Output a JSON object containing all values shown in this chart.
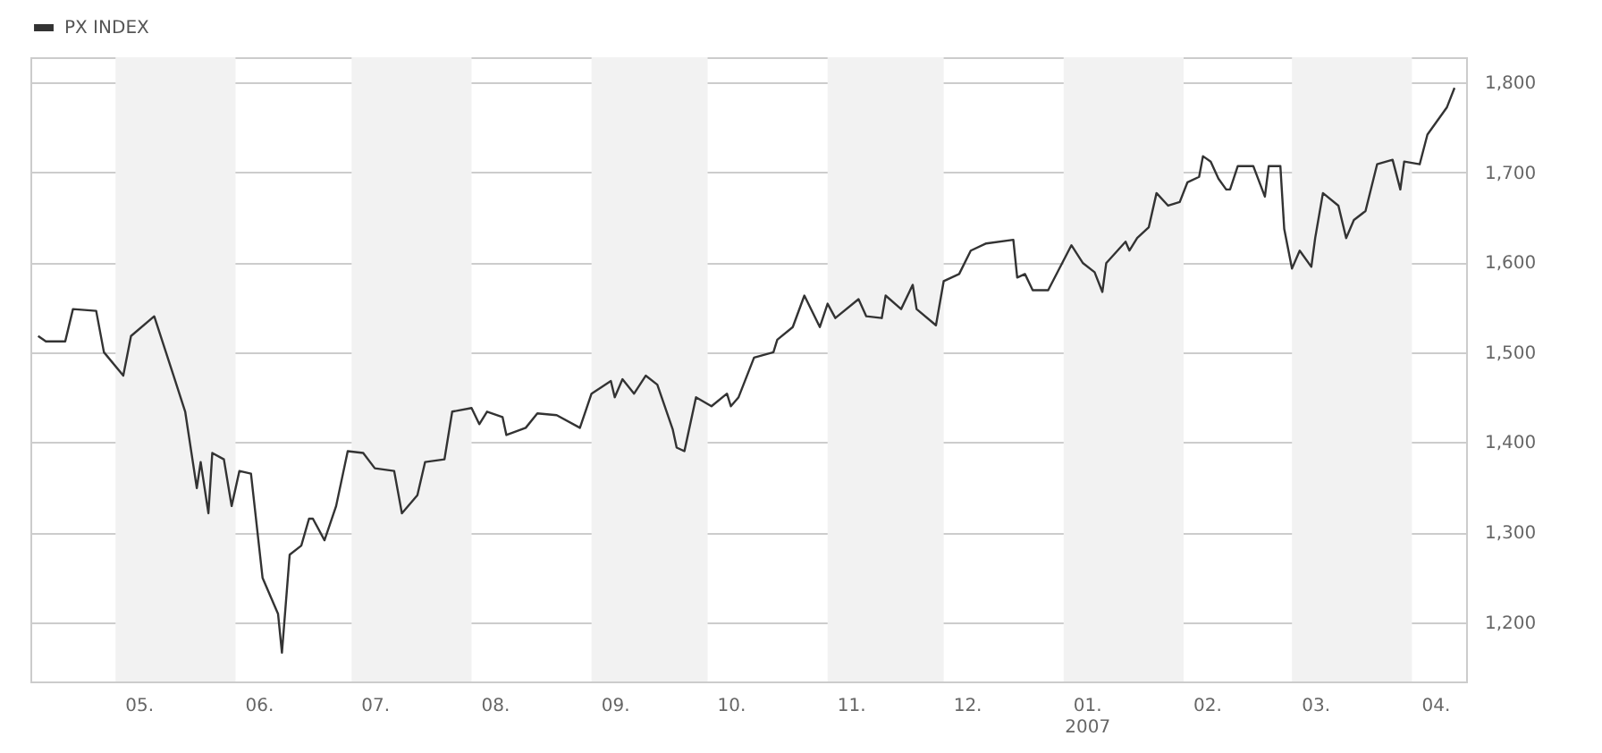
{
  "chart_data": {
    "type": "line",
    "legend": "top left",
    "grid": "y",
    "xlim": [
      "2006-04-09",
      "2007-04-15"
    ],
    "ylim": [
      1134,
      1828
    ],
    "yticks": [
      {
        "value": 1200,
        "label": "1,200"
      },
      {
        "value": 1300,
        "label": "1,300"
      },
      {
        "value": 1400,
        "label": "1,400"
      },
      {
        "value": 1500,
        "label": "1,500"
      },
      {
        "value": 1600,
        "label": "1,600"
      },
      {
        "value": 1700,
        "label": "1,700"
      },
      {
        "value": 1800,
        "label": "1,800"
      }
    ],
    "xticks": [
      {
        "value": "2006-05-07",
        "label": "05."
      },
      {
        "value": "2006-06-07",
        "label": "06."
      },
      {
        "value": "2006-07-07",
        "label": "07."
      },
      {
        "value": "2006-08-07",
        "label": "08."
      },
      {
        "value": "2006-09-07",
        "label": "09."
      },
      {
        "value": "2006-10-07",
        "label": "10."
      },
      {
        "value": "2006-11-07",
        "label": "11."
      },
      {
        "value": "2006-12-07",
        "label": "12."
      },
      {
        "value": "2007-01-07",
        "label": "01.\n2007"
      },
      {
        "value": "2007-02-07",
        "label": "02."
      },
      {
        "value": "2007-03-07",
        "label": "03."
      },
      {
        "value": "2007-04-07",
        "label": "04."
      }
    ],
    "bands": [
      {
        "axis": "x",
        "from": "2006-05-01",
        "to": "2006-06-01",
        "color": "#f2f2f2"
      },
      {
        "axis": "x",
        "from": "2006-07-01",
        "to": "2006-08-01",
        "color": "#f2f2f2"
      },
      {
        "axis": "x",
        "from": "2006-09-01",
        "to": "2006-10-01",
        "color": "#f2f2f2"
      },
      {
        "axis": "x",
        "from": "2006-11-01",
        "to": "2006-12-01",
        "color": "#f2f2f2"
      },
      {
        "axis": "x",
        "from": "2007-01-01",
        "to": "2007-02-01",
        "color": "#f2f2f2"
      },
      {
        "axis": "x",
        "from": "2007-03-01",
        "to": "2007-04-01",
        "color": "#f2f2f2"
      }
    ],
    "x": [
      "2006-04-11",
      "2006-04-13",
      "2006-04-18",
      "2006-04-20",
      "2006-04-26",
      "2006-04-28",
      "2006-05-03",
      "2006-05-05",
      "2006-05-11",
      "2006-05-16",
      "2006-05-19",
      "2006-05-22",
      "2006-05-23",
      "2006-05-25",
      "2006-05-26",
      "2006-05-29",
      "2006-05-31",
      "2006-06-02",
      "2006-06-05",
      "2006-06-08",
      "2006-06-12",
      "2006-06-13",
      "2006-06-15",
      "2006-06-18",
      "2006-06-20",
      "2006-06-21",
      "2006-06-24",
      "2006-06-27",
      "2006-06-30",
      "2006-07-04",
      "2006-07-07",
      "2006-07-12",
      "2006-07-14",
      "2006-07-18",
      "2006-07-20",
      "2006-07-25",
      "2006-07-27",
      "2006-08-01",
      "2006-08-03",
      "2006-08-05",
      "2006-08-09",
      "2006-08-10",
      "2006-08-15",
      "2006-08-18",
      "2006-08-23",
      "2006-08-29",
      "2006-09-01",
      "2006-09-06",
      "2006-09-07",
      "2006-09-09",
      "2006-09-12",
      "2006-09-15",
      "2006-09-18",
      "2006-09-22",
      "2006-09-23",
      "2006-09-25",
      "2006-09-28",
      "2006-10-02",
      "2006-10-06",
      "2006-10-07",
      "2006-10-09",
      "2006-10-13",
      "2006-10-18",
      "2006-10-19",
      "2006-10-23",
      "2006-10-26",
      "2006-10-30",
      "2006-11-01",
      "2006-11-03",
      "2006-11-09",
      "2006-11-11",
      "2006-11-15",
      "2006-11-16",
      "2006-11-20",
      "2006-11-23",
      "2006-11-24",
      "2006-11-29",
      "2006-12-01",
      "2006-12-05",
      "2006-12-08",
      "2006-12-12",
      "2006-12-19",
      "2006-12-20",
      "2006-12-22",
      "2006-12-24",
      "2006-12-28",
      "2007-01-03",
      "2007-01-06",
      "2007-01-09",
      "2007-01-11",
      "2007-01-12",
      "2007-01-17",
      "2007-01-18",
      "2007-01-20",
      "2007-01-23",
      "2007-01-25",
      "2007-01-28",
      "2007-01-31",
      "2007-02-02",
      "2007-02-05",
      "2007-02-06",
      "2007-02-08",
      "2007-02-10",
      "2007-02-12",
      "2007-02-13",
      "2007-02-15",
      "2007-02-19",
      "2007-02-22",
      "2007-02-23",
      "2007-02-26",
      "2007-02-27",
      "2007-03-01",
      "2007-03-03",
      "2007-03-06",
      "2007-03-07",
      "2007-03-09",
      "2007-03-13",
      "2007-03-15",
      "2007-03-17",
      "2007-03-20",
      "2007-03-23",
      "2007-03-27",
      "2007-03-29",
      "2007-03-30",
      "2007-04-03",
      "2007-04-05",
      "2007-04-10",
      "2007-04-12"
    ],
    "series": [
      {
        "name": "PX INDEX",
        "color": "#333333",
        "values": [
          1518,
          1512,
          1512,
          1548,
          1546,
          1500,
          1474,
          1518,
          1540,
          1474,
          1434,
          1349,
          1378,
          1321,
          1388,
          1381,
          1329,
          1368,
          1365,
          1249,
          1209,
          1166,
          1275,
          1285,
          1315,
          1315,
          1291,
          1329,
          1390,
          1388,
          1371,
          1368,
          1321,
          1341,
          1378,
          1381,
          1434,
          1438,
          1420,
          1434,
          1428,
          1408,
          1416,
          1432,
          1430,
          1416,
          1454,
          1468,
          1450,
          1470,
          1454,
          1474,
          1464,
          1414,
          1394,
          1390,
          1450,
          1440,
          1454,
          1440,
          1450,
          1494,
          1500,
          1514,
          1528,
          1563,
          1528,
          1554,
          1538,
          1559,
          1540,
          1538,
          1563,
          1548,
          1575,
          1548,
          1530,
          1579,
          1587,
          1613,
          1621,
          1625,
          1583,
          1587,
          1569,
          1569,
          1619,
          1599,
          1589,
          1567,
          1599,
          1623,
          1613,
          1627,
          1639,
          1677,
          1663,
          1667,
          1689,
          1695,
          1718,
          1712,
          1693,
          1681,
          1681,
          1707,
          1707,
          1673,
          1707,
          1707,
          1637,
          1593,
          1613,
          1595,
          1627,
          1677,
          1663,
          1627,
          1647,
          1657,
          1709,
          1714,
          1681,
          1712,
          1709,
          1742,
          1772,
          1794
        ]
      }
    ]
  }
}
